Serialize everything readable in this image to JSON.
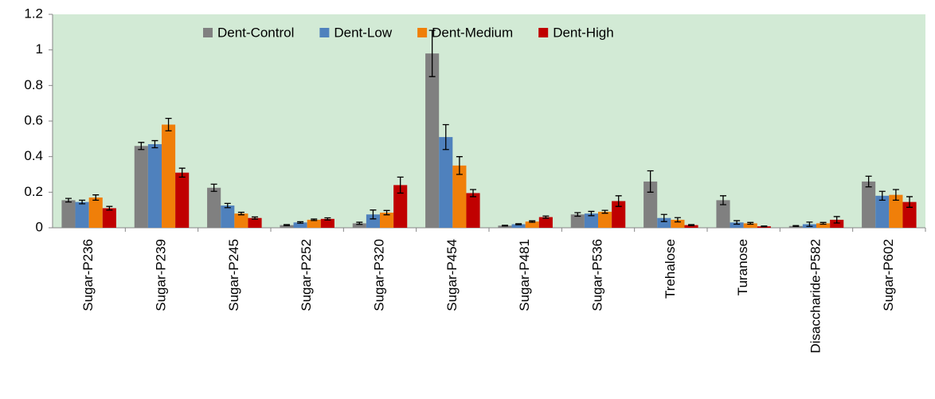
{
  "chart_data": {
    "type": "bar",
    "categories": [
      "Sugar-P236",
      "Sugar-P239",
      "Sugar-P245",
      "Sugar-P252",
      "Sugar-P320",
      "Sugar-P454",
      "Sugar-P481",
      "Sugar-P536",
      "Trehalose",
      "Turanose",
      "Disaccharide-P582",
      "Sugar-P602"
    ],
    "series": [
      {
        "name": "Dent-Control",
        "color": "#808080",
        "values": [
          0.155,
          0.46,
          0.225,
          0.015,
          0.025,
          0.98,
          0.012,
          0.075,
          0.26,
          0.155,
          0.01,
          0.26
        ],
        "errors": [
          0.01,
          0.02,
          0.02,
          0.003,
          0.006,
          0.13,
          0.002,
          0.01,
          0.06,
          0.025,
          0.002,
          0.03
        ]
      },
      {
        "name": "Dent-Low",
        "color": "#4f81bd",
        "values": [
          0.145,
          0.47,
          0.125,
          0.03,
          0.075,
          0.51,
          0.02,
          0.08,
          0.055,
          0.03,
          0.02,
          0.18
        ],
        "errors": [
          0.01,
          0.02,
          0.012,
          0.004,
          0.025,
          0.07,
          0.003,
          0.012,
          0.02,
          0.01,
          0.012,
          0.025
        ]
      },
      {
        "name": "Dent-Medium",
        "color": "#f07f09",
        "values": [
          0.17,
          0.58,
          0.08,
          0.045,
          0.085,
          0.35,
          0.035,
          0.09,
          0.045,
          0.025,
          0.025,
          0.185
        ],
        "errors": [
          0.015,
          0.035,
          0.007,
          0.004,
          0.012,
          0.05,
          0.004,
          0.008,
          0.012,
          0.005,
          0.005,
          0.03
        ]
      },
      {
        "name": "Dent-High",
        "color": "#c00000",
        "values": [
          0.11,
          0.31,
          0.055,
          0.05,
          0.24,
          0.195,
          0.06,
          0.15,
          0.015,
          0.008,
          0.045,
          0.145
        ],
        "errors": [
          0.01,
          0.025,
          0.006,
          0.006,
          0.045,
          0.02,
          0.006,
          0.03,
          0.003,
          0.002,
          0.018,
          0.03
        ]
      }
    ],
    "ylim": [
      0,
      1.2
    ],
    "yticks": [
      0,
      0.2,
      0.4,
      0.6,
      0.8,
      1,
      1.2
    ],
    "grid": false,
    "legend": "top",
    "plot_background": "#d2ead5"
  }
}
